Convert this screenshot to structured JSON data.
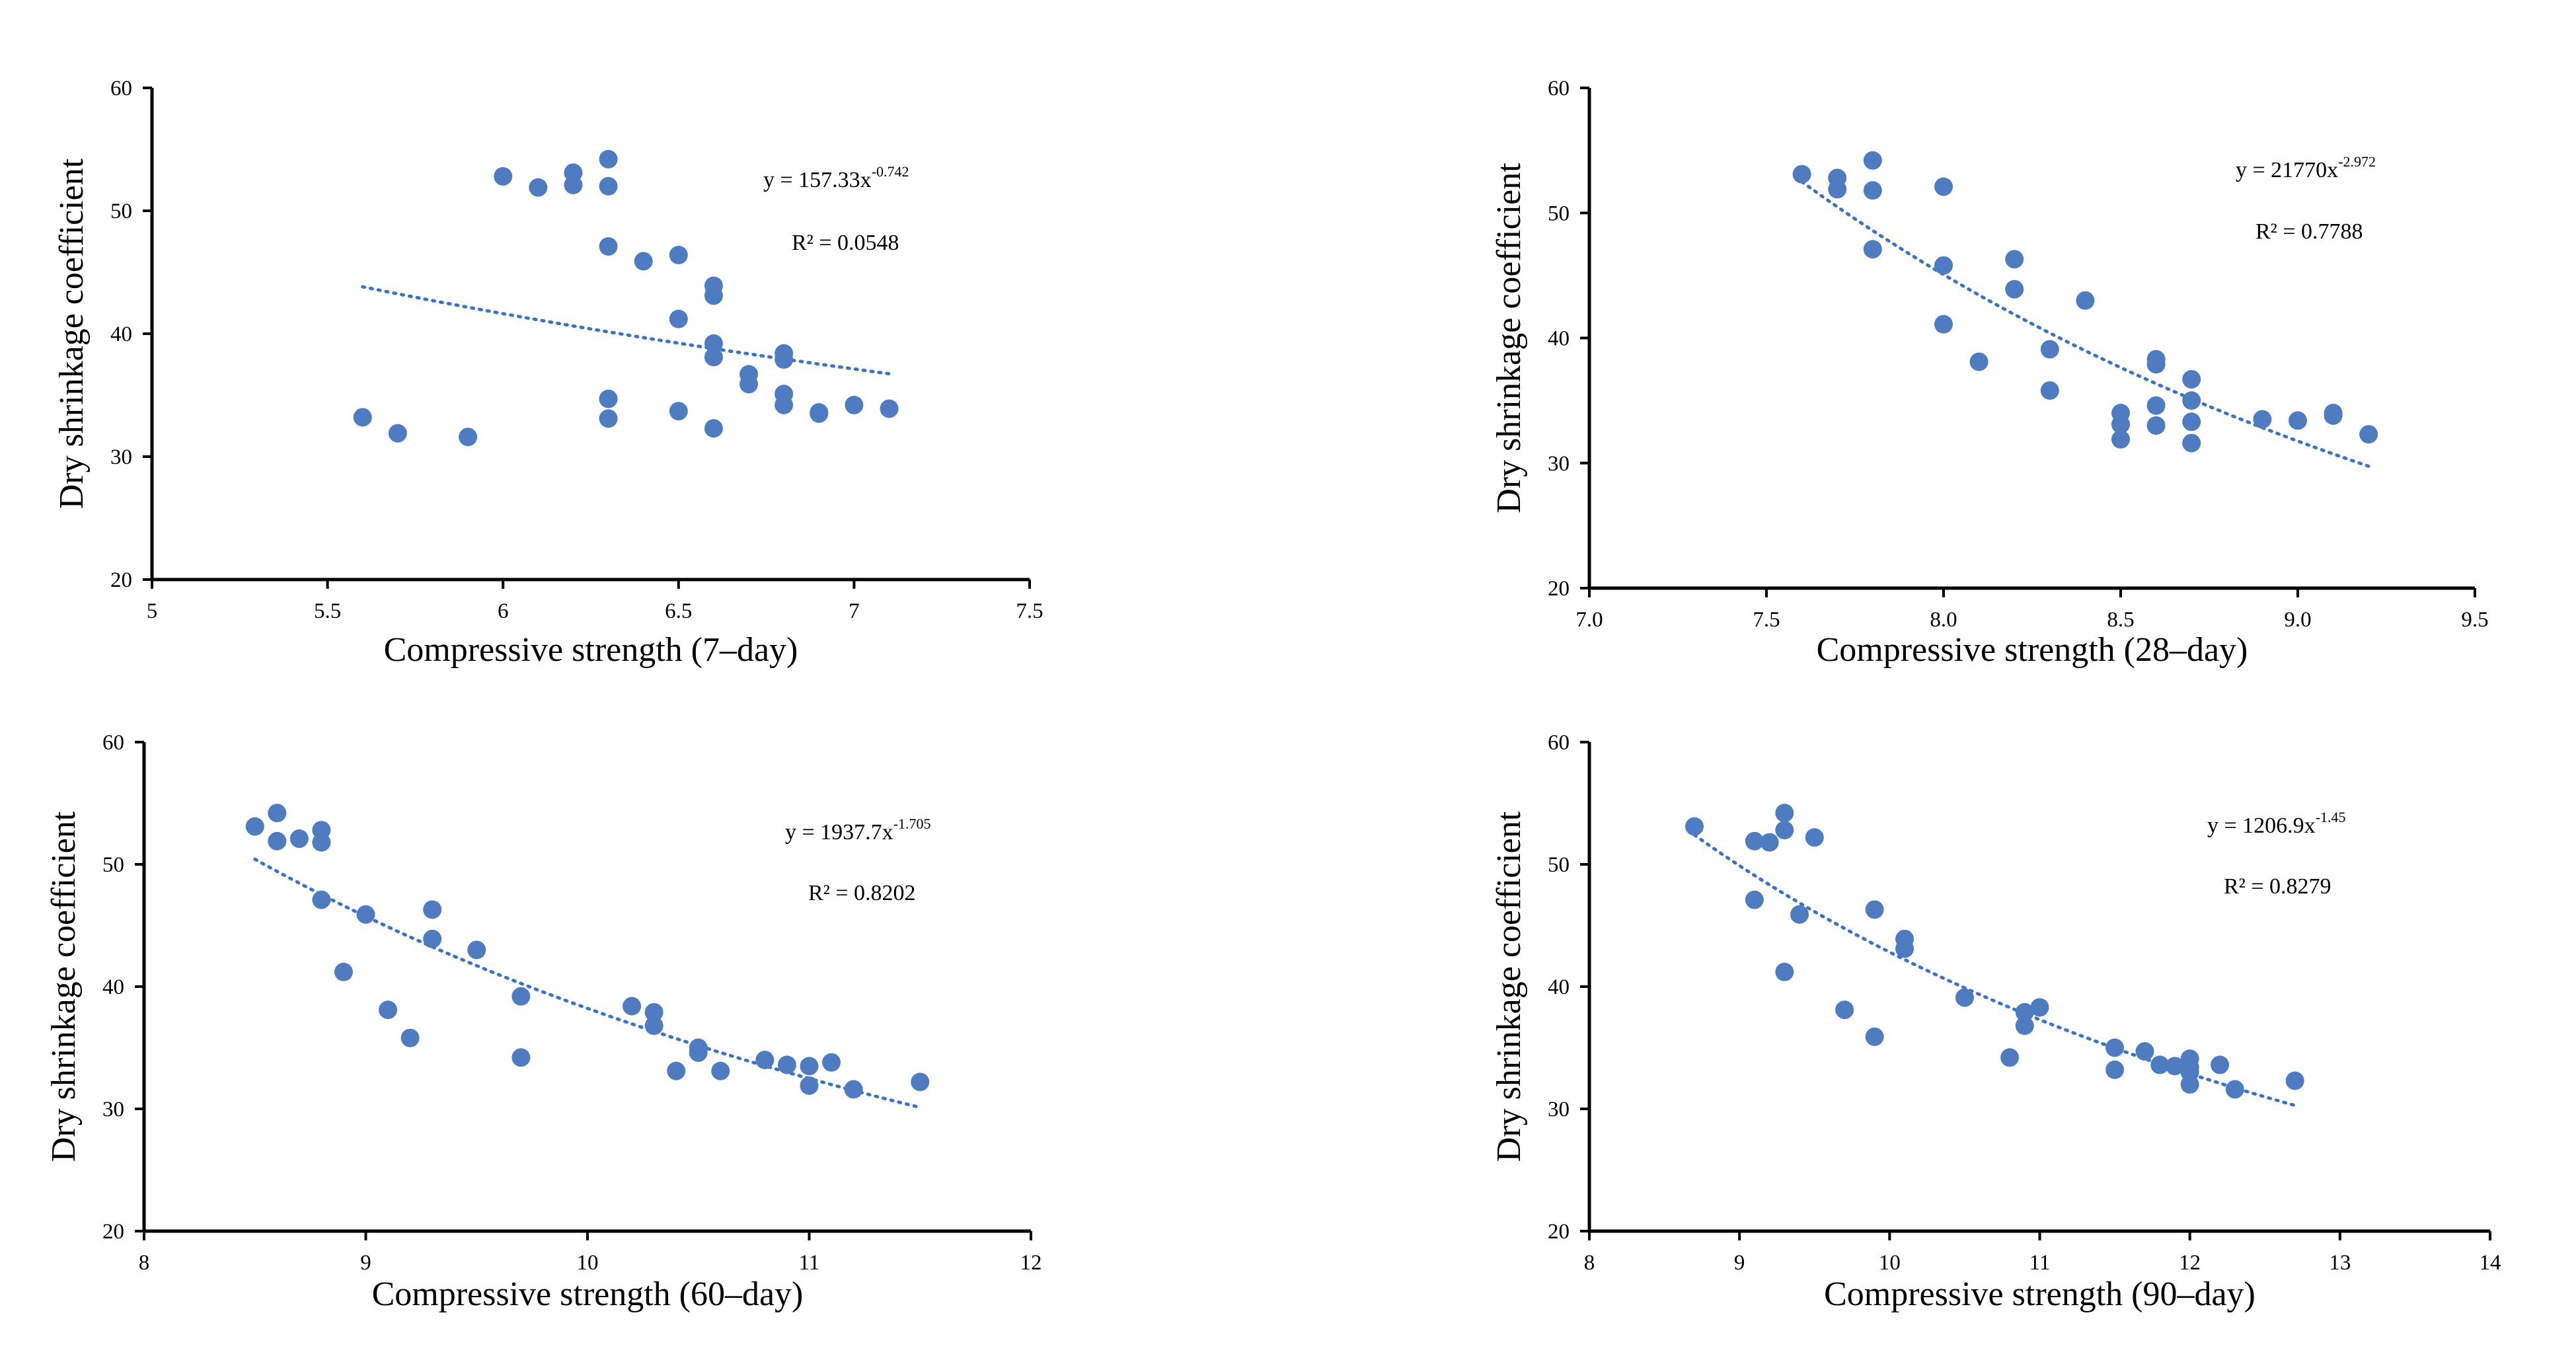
{
  "colors": {
    "marker": "#4f7cc1",
    "trend": "#3f72c0",
    "axis": "#000000",
    "text": "#000000"
  },
  "chart_data": [
    {
      "type": "scatter",
      "xlabel": "Compressive strength (7–day)",
      "ylabel": "Dry shrinkage coefficient",
      "xlim": [
        5,
        7.5
      ],
      "ylim": [
        20,
        60
      ],
      "xticks": [
        "5",
        "5.5",
        "6",
        "6.5",
        "7",
        "7.5"
      ],
      "yticks": [
        "20",
        "30",
        "40",
        "50",
        "60"
      ],
      "trendline": {
        "type": "power",
        "a": 157.33,
        "b": -0.742,
        "x_range": [
          5.6,
          7.1
        ]
      },
      "equation": {
        "prefix": "y = 157.33x",
        "exponent": "-0.742"
      },
      "r2": "R² = 0.0548",
      "points": [
        [
          5.6,
          33.2
        ],
        [
          5.7,
          31.9
        ],
        [
          5.9,
          31.6
        ],
        [
          6.0,
          52.8
        ],
        [
          6.1,
          51.9
        ],
        [
          6.2,
          53.1
        ],
        [
          6.2,
          52.1
        ],
        [
          6.3,
          54.2
        ],
        [
          6.3,
          52.0
        ],
        [
          6.3,
          47.1
        ],
        [
          6.3,
          34.7
        ],
        [
          6.3,
          33.1
        ],
        [
          6.4,
          45.9
        ],
        [
          6.5,
          46.4
        ],
        [
          6.5,
          41.2
        ],
        [
          6.5,
          33.7
        ],
        [
          6.6,
          43.9
        ],
        [
          6.6,
          43.1
        ],
        [
          6.6,
          39.2
        ],
        [
          6.6,
          38.1
        ],
        [
          6.6,
          32.3
        ],
        [
          6.7,
          36.7
        ],
        [
          6.7,
          35.9
        ],
        [
          6.8,
          38.4
        ],
        [
          6.8,
          37.9
        ],
        [
          6.8,
          35.1
        ],
        [
          6.8,
          34.2
        ],
        [
          6.9,
          33.6
        ],
        [
          6.9,
          33.5
        ],
        [
          7.0,
          34.2
        ],
        [
          7.1,
          33.9
        ]
      ]
    },
    {
      "type": "scatter",
      "xlabel": "Compressive strength (28–day)",
      "ylabel": "Dry shrinkage coefficient",
      "xlim": [
        7.0,
        9.5
      ],
      "ylim": [
        20,
        60
      ],
      "xticks": [
        "7.0",
        "7.5",
        "8.0",
        "8.5",
        "9.0",
        "9.5"
      ],
      "yticks": [
        "20",
        "30",
        "40",
        "50",
        "60"
      ],
      "trendline": {
        "type": "power",
        "a": 21770,
        "b": -2.972,
        "x_range": [
          7.6,
          9.2
        ]
      },
      "equation": {
        "prefix": "y = 21770x",
        "exponent": "-2.972"
      },
      "r2": "R² = 0.7788",
      "points": [
        [
          7.6,
          53.1
        ],
        [
          7.7,
          52.8
        ],
        [
          7.7,
          51.9
        ],
        [
          7.8,
          54.2
        ],
        [
          7.8,
          51.8
        ],
        [
          7.8,
          47.1
        ],
        [
          8.0,
          52.1
        ],
        [
          8.0,
          45.8
        ],
        [
          8.0,
          41.1
        ],
        [
          8.1,
          38.1
        ],
        [
          8.2,
          46.3
        ],
        [
          8.2,
          43.9
        ],
        [
          8.3,
          39.1
        ],
        [
          8.3,
          35.8
        ],
        [
          8.4,
          43.0
        ],
        [
          8.5,
          34.0
        ],
        [
          8.5,
          33.1
        ],
        [
          8.5,
          31.9
        ],
        [
          8.6,
          38.3
        ],
        [
          8.6,
          37.9
        ],
        [
          8.6,
          34.6
        ],
        [
          8.6,
          33.0
        ],
        [
          8.7,
          36.7
        ],
        [
          8.7,
          35.0
        ],
        [
          8.7,
          33.3
        ],
        [
          8.7,
          31.6
        ],
        [
          8.9,
          33.5
        ],
        [
          9.0,
          33.4
        ],
        [
          9.1,
          34.0
        ],
        [
          9.1,
          33.8
        ],
        [
          9.2,
          32.3
        ]
      ]
    },
    {
      "type": "scatter",
      "xlabel": "Compressive strength (60–day)",
      "ylabel": "Dry shrinkage coefficient",
      "xlim": [
        8,
        12
      ],
      "ylim": [
        20,
        60
      ],
      "xticks": [
        "8",
        "9",
        "10",
        "11",
        "12"
      ],
      "yticks": [
        "20",
        "30",
        "40",
        "50",
        "60"
      ],
      "trendline": {
        "type": "power",
        "a": 1937.7,
        "b": -1.705,
        "x_range": [
          8.5,
          11.5
        ]
      },
      "equation": {
        "prefix": "y = 1937.7x",
        "exponent": "-1.705"
      },
      "r2": "R² = 0.8202",
      "points": [
        [
          8.5,
          53.1
        ],
        [
          8.6,
          54.2
        ],
        [
          8.6,
          51.9
        ],
        [
          8.7,
          52.1
        ],
        [
          8.8,
          52.8
        ],
        [
          8.8,
          51.8
        ],
        [
          8.8,
          47.1
        ],
        [
          8.9,
          41.2
        ],
        [
          9.0,
          45.9
        ],
        [
          9.1,
          38.1
        ],
        [
          9.2,
          35.8
        ],
        [
          9.3,
          46.3
        ],
        [
          9.3,
          43.9
        ],
        [
          9.5,
          43.0
        ],
        [
          9.7,
          39.2
        ],
        [
          9.7,
          34.2
        ],
        [
          10.2,
          38.4
        ],
        [
          10.3,
          37.9
        ],
        [
          10.3,
          36.8
        ],
        [
          10.4,
          33.1
        ],
        [
          10.5,
          35.0
        ],
        [
          10.5,
          34.6
        ],
        [
          10.6,
          33.1
        ],
        [
          10.8,
          34.0
        ],
        [
          10.9,
          33.6
        ],
        [
          11.0,
          33.5
        ],
        [
          11.0,
          31.9
        ],
        [
          11.1,
          33.8
        ],
        [
          11.2,
          31.6
        ],
        [
          11.5,
          32.2
        ]
      ]
    },
    {
      "type": "scatter",
      "xlabel": "Compressive strength (90–day)",
      "ylabel": "Dry shrinkage coefficient",
      "xlim": [
        8,
        14
      ],
      "ylim": [
        20,
        60
      ],
      "xticks": [
        "8",
        "9",
        "10",
        "11",
        "12",
        "13",
        "14"
      ],
      "yticks": [
        "20",
        "30",
        "40",
        "50",
        "60"
      ],
      "trendline": {
        "type": "power",
        "a": 1206.9,
        "b": -1.45,
        "x_range": [
          8.7,
          12.7
        ]
      },
      "equation": {
        "prefix": "y = 1206.9x",
        "exponent": "-1.45"
      },
      "r2": "R² = 0.8279",
      "points": [
        [
          8.7,
          53.1
        ],
        [
          9.1,
          51.9
        ],
        [
          9.1,
          47.1
        ],
        [
          9.2,
          51.8
        ],
        [
          9.3,
          54.2
        ],
        [
          9.3,
          52.8
        ],
        [
          9.3,
          41.2
        ],
        [
          9.4,
          45.9
        ],
        [
          9.5,
          52.2
        ],
        [
          9.7,
          38.1
        ],
        [
          9.9,
          46.3
        ],
        [
          9.9,
          35.9
        ],
        [
          10.1,
          43.9
        ],
        [
          10.1,
          43.1
        ],
        [
          10.5,
          39.1
        ],
        [
          10.8,
          34.2
        ],
        [
          10.9,
          37.9
        ],
        [
          10.9,
          36.8
        ],
        [
          11.0,
          38.3
        ],
        [
          11.5,
          35.0
        ],
        [
          11.5,
          33.2
        ],
        [
          11.7,
          34.7
        ],
        [
          11.8,
          33.6
        ],
        [
          11.9,
          33.5
        ],
        [
          12.0,
          34.1
        ],
        [
          12.0,
          33.4
        ],
        [
          12.0,
          33.0
        ],
        [
          12.0,
          32.0
        ],
        [
          12.2,
          33.6
        ],
        [
          12.3,
          31.6
        ],
        [
          12.7,
          32.3
        ]
      ]
    }
  ]
}
